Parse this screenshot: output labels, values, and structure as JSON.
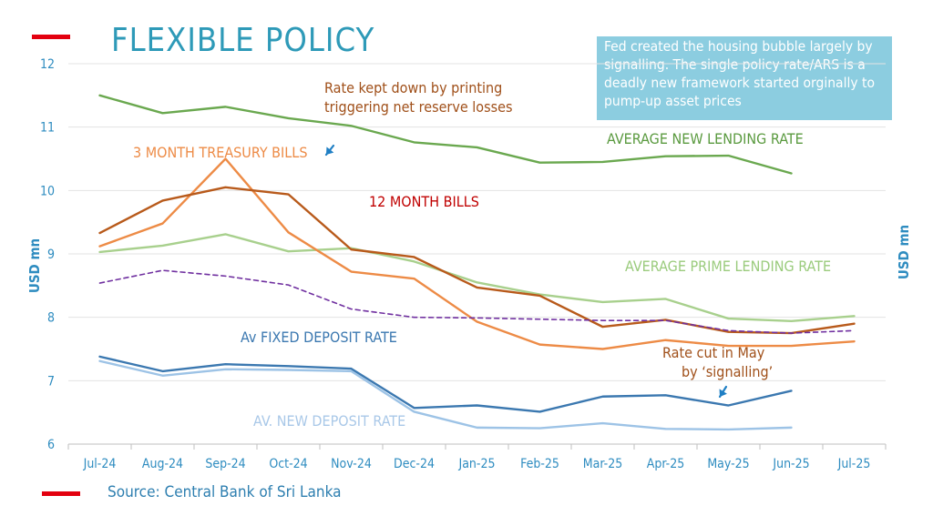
{
  "title": "FLEXIBLE POLICY",
  "note": "Fed created the housing bubble largely by signalling. The single policy rate/ARS is a deadly new framework started orginally to pump-up asset prices",
  "source": "Source: Central Bank of Sri Lanka",
  "annotations": {
    "printing": "Rate kept down by printing triggering net reserve losses",
    "printing_l1": "Rate kept down by printing",
    "printing_l2": "triggering net reserve losses",
    "rate_cut": "Rate cut in May by 'signalling'",
    "rate_cut_l1": "Rate cut in May",
    "rate_cut_l2": "by ‘signalling’"
  },
  "series_labels": {
    "tbill3m": "3 MONTH TREASURY BILLS",
    "tbill12m": "12 MONTH BILLS",
    "avg_new_lending": "AVERAGE NEW LENDING RATE",
    "avg_prime": "AVERAGE PRIME LENDING RATE",
    "fixed_deposit": "Av FIXED DEPOSIT RATE",
    "new_deposit": "AV. NEW DEPOSIT RATE"
  },
  "colors": {
    "title": "#2e9ab8",
    "accent_red": "#e3000f",
    "note_bg": "#8ccde0",
    "avg_new_lending": "#6aa84f",
    "avg_prime": "#a8d08d",
    "tbill3m": "#ed8b46",
    "tbill12m": "#b85a1b",
    "fixed_deposit": "#3b78b0",
    "new_deposit": "#9dc3e6",
    "policy_dashed": "#7030a0",
    "arrow": "#1f7fc4"
  },
  "chart_data": {
    "type": "line",
    "categories": [
      "Jul-24",
      "Aug-24",
      "Sep-24",
      "Oct-24",
      "Nov-24",
      "Dec-24",
      "Jan-25",
      "Feb-25",
      "Mar-25",
      "Apr-25",
      "May-25",
      "Jun-25",
      "Jul-25"
    ],
    "ylabel_left": "USD mn",
    "ylabel_right": "USD mn",
    "ylim": [
      6,
      12
    ],
    "yticks": [
      "12",
      "11",
      "10",
      "9",
      "8",
      "7",
      "6"
    ],
    "grid": true,
    "series": [
      {
        "key": "avg_new_lending",
        "values": [
          11.5,
          11.22,
          11.32,
          11.14,
          11.02,
          10.76,
          10.68,
          10.44,
          10.45,
          10.54,
          10.55,
          10.27,
          null
        ]
      },
      {
        "key": "avg_prime",
        "values": [
          9.03,
          9.13,
          9.31,
          9.04,
          9.09,
          8.88,
          8.55,
          8.36,
          8.24,
          8.29,
          7.98,
          7.94,
          8.02
        ]
      },
      {
        "key": "tbill3m",
        "values": [
          9.12,
          9.48,
          10.5,
          9.34,
          8.72,
          8.61,
          7.93,
          7.57,
          7.5,
          7.64,
          7.55,
          7.55,
          7.62
        ]
      },
      {
        "key": "tbill12m",
        "values": [
          9.33,
          9.84,
          10.05,
          9.94,
          9.07,
          8.95,
          8.47,
          8.34,
          7.85,
          7.96,
          7.77,
          7.75,
          7.9
        ]
      },
      {
        "key": "policy_dashed",
        "dashed": true,
        "values": [
          8.54,
          8.74,
          8.65,
          8.51,
          8.13,
          8.0,
          7.99,
          7.97,
          7.95,
          7.95,
          7.79,
          7.75,
          7.79
        ]
      },
      {
        "key": "fixed_deposit",
        "values": [
          7.38,
          7.15,
          7.26,
          7.23,
          7.19,
          6.57,
          6.61,
          6.51,
          6.75,
          6.77,
          6.61,
          6.84,
          null
        ]
      },
      {
        "key": "new_deposit",
        "values": [
          7.31,
          7.08,
          7.18,
          7.17,
          7.15,
          6.51,
          6.26,
          6.25,
          6.33,
          6.24,
          6.23,
          6.26,
          null
        ]
      }
    ]
  }
}
